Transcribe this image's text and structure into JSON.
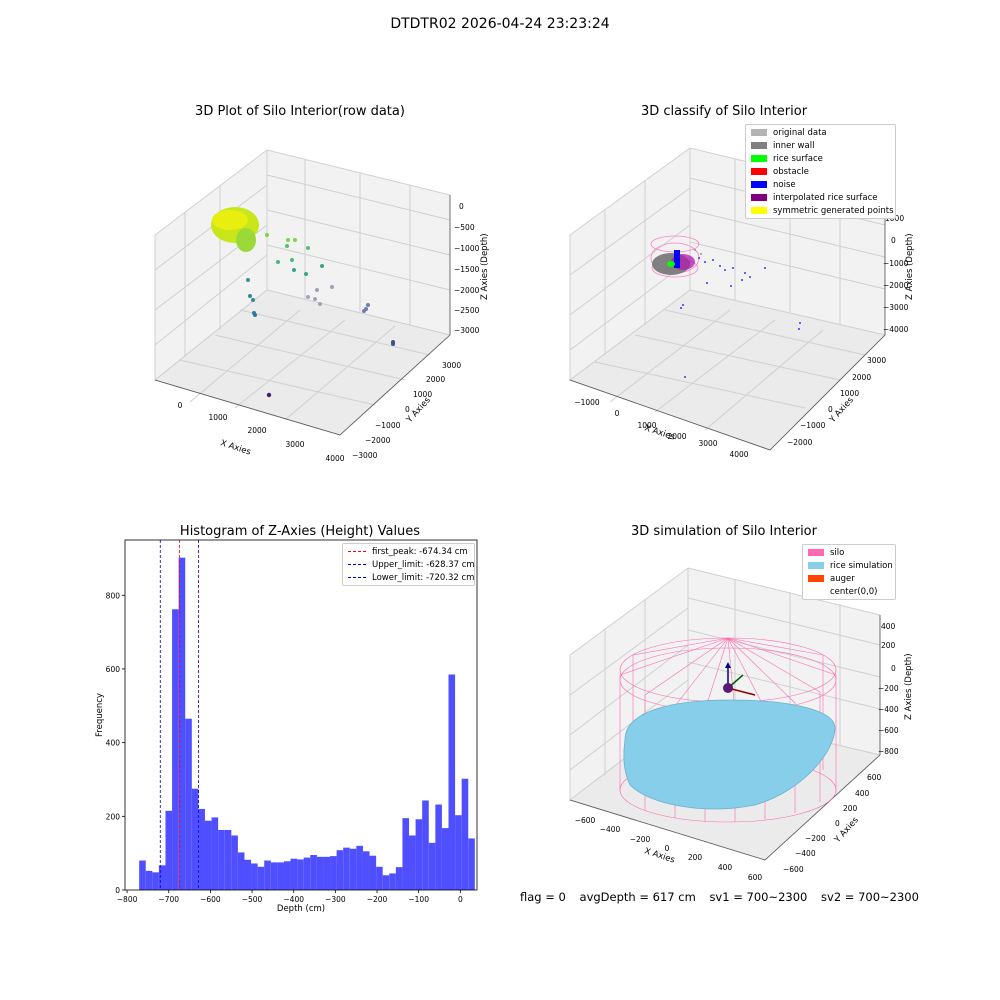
{
  "figure_title": "DTDTR02 2026-04-24 23:23:24",
  "status": {
    "flag": "flag = 0",
    "avg_depth": "avgDepth = 617 cm",
    "sv1": "sv1 = 700~2300",
    "sv2": "sv2 = 700~2300"
  },
  "colors": {
    "hist_bar": "#4f4fff",
    "first_peak_line": "#ff0000",
    "limit_lines": "#0000cc",
    "silo": "#ff69b4",
    "rice_simulation": "#87ceeb",
    "auger": "#ff4500"
  },
  "chart_data": [
    {
      "type": "scatter",
      "title": "3D Plot of Silo Interior(row data)",
      "xlabel": "X Axies",
      "ylabel": "Y Axies",
      "zlabel": "Z Axies (Depth)",
      "x_ticks": [
        "0",
        "1000",
        "2000",
        "3000",
        "4000"
      ],
      "y_ticks": [
        "3000",
        "2000",
        "1000",
        "0",
        "−1000",
        "−2000",
        "−3000"
      ],
      "z_ticks": [
        "0",
        "−500",
        "−1000",
        "−1500",
        "−2000",
        "−2500",
        "−3000"
      ],
      "series": [
        {
          "x": [
            0,
            100,
            200,
            400,
            500,
            600,
            700,
            800,
            1000,
            1100,
            1200,
            1300,
            1500,
            1800,
            2000,
            2500,
            3500
          ],
          "y": [
            0,
            -200,
            100,
            200,
            -100,
            300,
            0,
            400,
            600,
            800,
            1000,
            1200,
            1500,
            1800,
            2200,
            2800,
            3200
          ],
          "z": [
            -300,
            -400,
            -500,
            -700,
            -900,
            -1100,
            -1200,
            -1400,
            -1600,
            -1800,
            -2000,
            -2200,
            -2400,
            -2600,
            -2800,
            -3000,
            -3000
          ]
        }
      ]
    },
    {
      "type": "scatter",
      "title": "3D classify of Silo Interior",
      "xlabel": "X Axies",
      "ylabel": "Y Axies",
      "zlabel": "Z Axies (Depth)",
      "x_ticks": [
        "−1000",
        "0",
        "1000",
        "2000",
        "3000",
        "4000"
      ],
      "y_ticks": [
        "3000",
        "2000",
        "1000",
        "0",
        "−1000",
        "−2000"
      ],
      "z_ticks": [
        "1000",
        "0",
        "−1000",
        "−2000",
        "−3000",
        "−4000"
      ],
      "legend": {
        "position": "top-right",
        "entries": [
          {
            "label": "original data",
            "color": "#b3b3b3"
          },
          {
            "label": "inner wall",
            "color": "#808080"
          },
          {
            "label": "rice surface",
            "color": "#00ff00"
          },
          {
            "label": "obstacle",
            "color": "#ff0000"
          },
          {
            "label": "noise",
            "color": "#0000ff"
          },
          {
            "label": "interpolated rice surface",
            "color": "#800080"
          },
          {
            "label": "symmetric generated points",
            "color": "#ffff00"
          }
        ]
      }
    },
    {
      "type": "bar",
      "title": "Histogram of Z-Axies (Height) Values",
      "xlabel": "Depth (cm)",
      "ylabel": "Frequency",
      "xlim": [
        -805,
        40
      ],
      "ylim": [
        0,
        950
      ],
      "x_ticks": [
        -800,
        -700,
        -600,
        -500,
        -400,
        -300,
        -200,
        -100,
        0
      ],
      "x_tick_labels": [
        "−800",
        "−700",
        "−600",
        "−500",
        "−400",
        "−300",
        "−200",
        "−100",
        "0"
      ],
      "y_ticks": [
        0,
        200,
        400,
        600,
        800
      ],
      "y_tick_labels": [
        "0",
        "200",
        "400",
        "600",
        "800"
      ],
      "bin_start": -771,
      "bin_width": 15.8,
      "values": [
        80,
        52,
        48,
        67,
        215,
        762,
        902,
        465,
        275,
        220,
        188,
        197,
        163,
        163,
        148,
        102,
        82,
        72,
        63,
        80,
        75,
        75,
        78,
        85,
        83,
        88,
        95,
        90,
        90,
        92,
        108,
        115,
        112,
        120,
        105,
        93,
        63,
        40,
        45,
        62,
        195,
        148,
        192,
        243,
        128,
        232,
        168,
        585,
        203,
        302,
        140
      ],
      "lines": [
        {
          "x": -674.34,
          "label": "first_peak: -674.34 cm",
          "color": "#ff0000"
        },
        {
          "x": -628.37,
          "label": "Upper_limit: -628.37 cm",
          "color": "#0000cc"
        },
        {
          "x": -720.32,
          "label": "Lower_limit: -720.32 cm",
          "color": "#0000cc"
        }
      ],
      "legend": {
        "position": "top-right"
      }
    },
    {
      "type": "scatter",
      "title": "3D simulation of Silo Interior",
      "xlabel": "X Axies",
      "ylabel": "Y Axies",
      "zlabel": "Z Axies (Depth)",
      "x_ticks": [
        "−600",
        "−400",
        "−200",
        "0",
        "200",
        "400",
        "600"
      ],
      "y_ticks": [
        "600",
        "400",
        "200",
        "0",
        "−200",
        "−400",
        "−600"
      ],
      "z_ticks": [
        "400",
        "200",
        "0",
        "−200",
        "−400",
        "−600",
        "−800"
      ],
      "legend": {
        "position": "top-right",
        "entries": [
          {
            "label": "silo",
            "color": "#ff69b4"
          },
          {
            "label": "rice simulation",
            "color": "#87ceeb"
          },
          {
            "label": "auger",
            "color": "#ff4500"
          },
          {
            "label": "center(0,0)",
            "color": "#ffffff"
          }
        ]
      }
    }
  ]
}
